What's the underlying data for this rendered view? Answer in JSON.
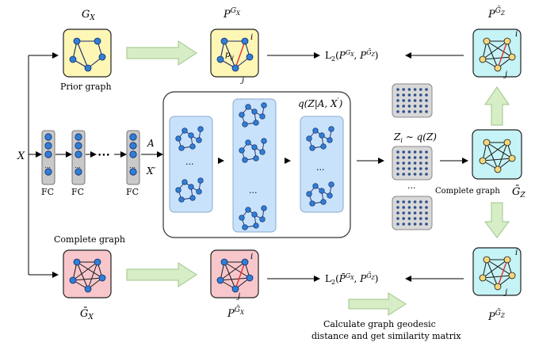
{
  "colors": {
    "yellow_box": "#fdf6b5",
    "red_box": "#f8c7cb",
    "cyan_box": "#c5f3f6",
    "blue_panel": "#c9e2fb",
    "node_blue": "#2e7fd6",
    "node_yellow": "#f6d77a",
    "green_arrow": "#d7edc5",
    "grid_dot": "#2f4f8a",
    "grid_bg": "#d8d8d8"
  },
  "labels": {
    "gx_top": "G_X",
    "p_gx_top": "P^{G_X}",
    "p_gz_top": "P^{ĀG_Z}",
    "prior_graph": "Prior graph",
    "x_input": "X",
    "fc1": "FC",
    "fc2": "FC",
    "fc3": "FC",
    "ellipsis_fc": "•••",
    "a_label": "A",
    "xprime_label": "X′",
    "q_label": "q(Z|A, X′)",
    "zi_label": "Z_i ~ q(Z)",
    "complete_graph_mid": "Complete graph",
    "gz_bar": "ĀG_Z",
    "complete_graph_bottom": "Complete graph",
    "gx_bar_bottom": "ĀG_X",
    "p_gx_bottom": "P^{ĀG_X}",
    "p_gz_bottom": "P^{ĀG_Z}",
    "l2_top": "L2(P^{G_X}, P^{ĀG_Z})",
    "l2_bottom": "L2(P̄^{G_X}, P^{ĀG_Z})",
    "geodesic_line1": "Calculate graph geodesic",
    "geodesic_line2": "distance and get similarity matrix",
    "node_i": "i",
    "node_j": "j",
    "p_ij": "p_ij"
  }
}
